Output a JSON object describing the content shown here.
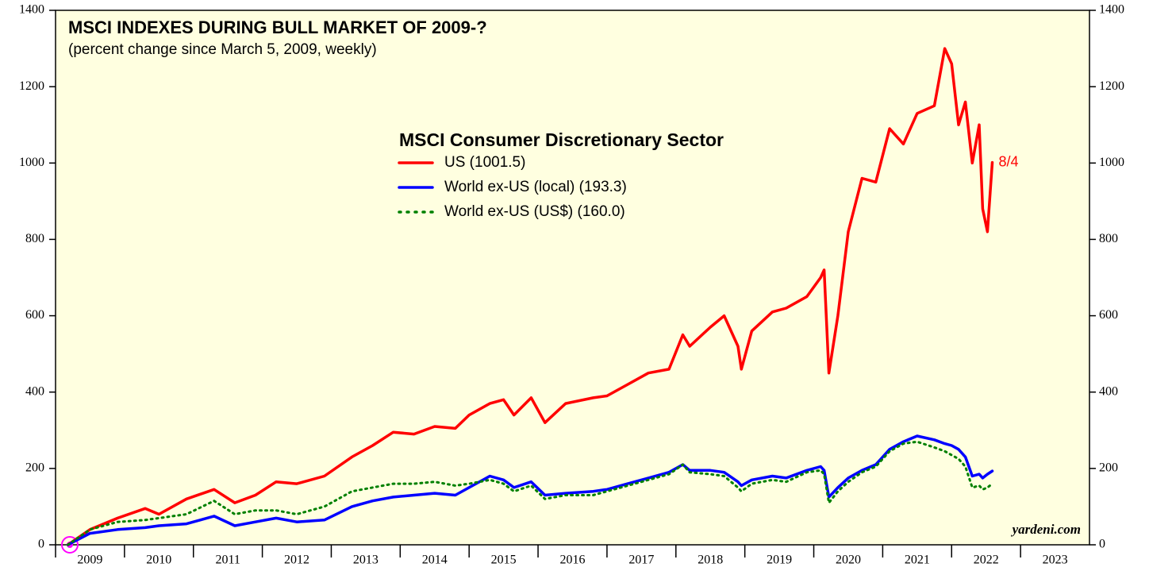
{
  "chart_data": {
    "type": "line",
    "title": "MSCI INDEXES DURING BULL MARKET OF 2009-?",
    "subtitle": "(percent change since March 5, 2009, weekly)",
    "legend_title": "MSCI Consumer Discretionary Sector",
    "annotation": "8/4",
    "source": "yardeni.com",
    "x": [
      2009.18,
      2009.5,
      2009.9,
      2010.3,
      2010.5,
      2010.9,
      2011.3,
      2011.6,
      2011.9,
      2012.2,
      2012.5,
      2012.9,
      2013.3,
      2013.6,
      2013.9,
      2014.2,
      2014.5,
      2014.8,
      2015.0,
      2015.3,
      2015.5,
      2015.65,
      2015.9,
      2016.1,
      2016.4,
      2016.8,
      2017.0,
      2017.3,
      2017.6,
      2017.9,
      2018.1,
      2018.2,
      2018.5,
      2018.7,
      2018.9,
      2018.95,
      2019.1,
      2019.4,
      2019.6,
      2019.9,
      2020.1,
      2020.15,
      2020.22,
      2020.35,
      2020.5,
      2020.7,
      2020.9,
      2021.1,
      2021.3,
      2021.5,
      2021.75,
      2021.9,
      2022.0,
      2022.1,
      2022.2,
      2022.3,
      2022.4,
      2022.45,
      2022.52,
      2022.59
    ],
    "series": [
      {
        "name": "US (1001.5)",
        "color": "#ff0000",
        "style": "solid",
        "values": [
          0,
          40,
          70,
          95,
          80,
          120,
          145,
          110,
          130,
          165,
          160,
          180,
          230,
          260,
          295,
          290,
          310,
          305,
          340,
          370,
          380,
          340,
          385,
          320,
          370,
          385,
          390,
          420,
          450,
          460,
          550,
          520,
          570,
          600,
          520,
          460,
          560,
          610,
          620,
          650,
          700,
          720,
          450,
          600,
          820,
          960,
          950,
          1090,
          1050,
          1130,
          1150,
          1300,
          1260,
          1100,
          1160,
          1000,
          1100,
          880,
          820,
          1001.5
        ]
      },
      {
        "name": "World ex-US (local) (193.3)",
        "color": "#0000ff",
        "style": "solid",
        "values": [
          0,
          30,
          40,
          45,
          50,
          55,
          75,
          50,
          60,
          70,
          60,
          65,
          100,
          115,
          125,
          130,
          135,
          130,
          150,
          180,
          170,
          150,
          165,
          130,
          135,
          140,
          145,
          160,
          175,
          190,
          210,
          195,
          195,
          190,
          165,
          155,
          170,
          180,
          175,
          195,
          205,
          195,
          125,
          150,
          175,
          195,
          210,
          250,
          270,
          285,
          275,
          265,
          260,
          250,
          230,
          180,
          185,
          175,
          185,
          193.3
        ]
      },
      {
        "name": "World ex-US (US$) (160.0)",
        "color": "#008000",
        "style": "dotted",
        "values": [
          0,
          40,
          60,
          65,
          70,
          80,
          115,
          80,
          90,
          90,
          80,
          100,
          140,
          150,
          160,
          160,
          165,
          155,
          160,
          170,
          160,
          140,
          155,
          120,
          130,
          130,
          140,
          155,
          170,
          185,
          210,
          190,
          185,
          180,
          150,
          140,
          160,
          170,
          165,
          190,
          195,
          185,
          110,
          140,
          165,
          190,
          205,
          245,
          265,
          270,
          255,
          245,
          235,
          225,
          205,
          150,
          155,
          145,
          150,
          160.0
        ]
      }
    ],
    "xlim": [
      2009,
      2024
    ],
    "xticks": [
      2009,
      2010,
      2011,
      2012,
      2013,
      2014,
      2015,
      2016,
      2017,
      2018,
      2019,
      2020,
      2021,
      2022,
      2023
    ],
    "ylim": [
      0,
      1400
    ],
    "yticks": [
      0,
      200,
      400,
      600,
      800,
      1000,
      1200,
      1400
    ],
    "grid": false
  }
}
